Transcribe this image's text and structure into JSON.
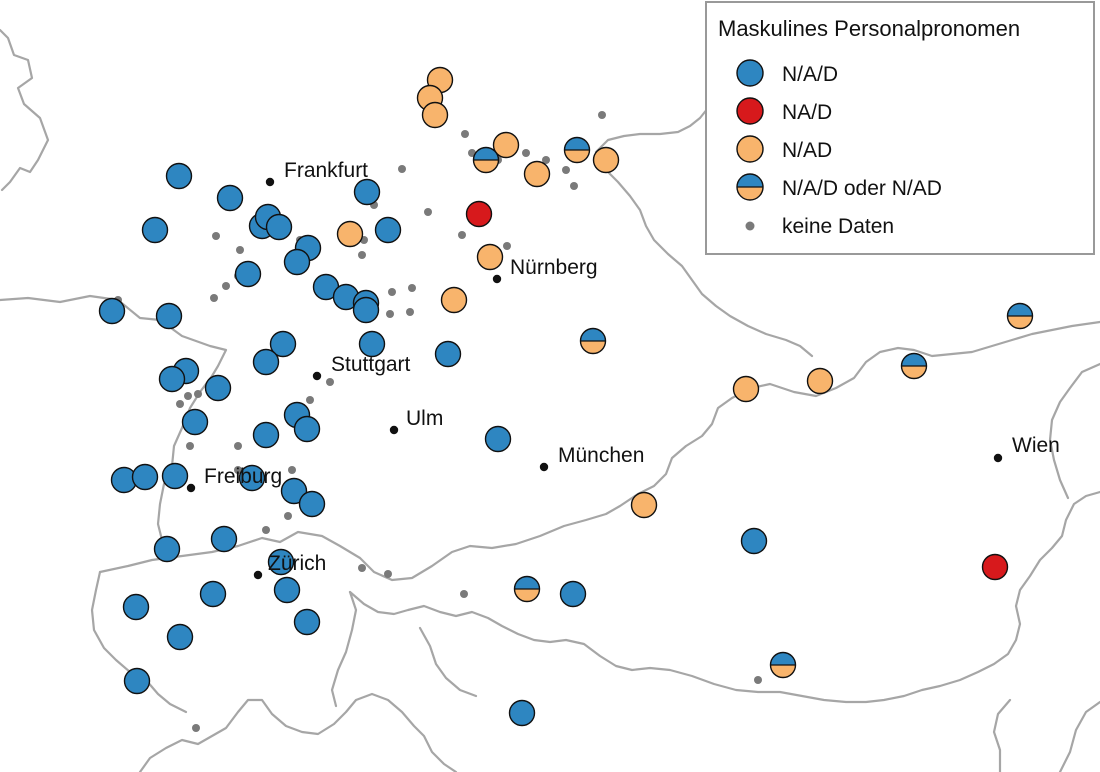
{
  "legend": {
    "title": "Maskulines Personalpronomen",
    "items": [
      {
        "key": "nad_sep",
        "label": "N/A/D",
        "symbol": "circle-blue"
      },
      {
        "key": "na_d",
        "label": "NA/D",
        "symbol": "circle-red"
      },
      {
        "key": "n_ad",
        "label": "N/AD",
        "symbol": "circle-orange"
      },
      {
        "key": "mixed",
        "label": "N/A/D oder N/AD",
        "symbol": "circle-half-orange-blue"
      },
      {
        "key": "none",
        "label": "keine Daten",
        "symbol": "small-grey-dot"
      }
    ]
  },
  "colors": {
    "nad_sep": "#2e86c1",
    "na_d": "#d7191c",
    "n_ad": "#f8b46c",
    "nodata": "#7a7a7a",
    "border": "#a6a6a6"
  },
  "cities": [
    {
      "name": "Frankfurt"
    },
    {
      "name": "Nürnberg"
    },
    {
      "name": "Stuttgart"
    },
    {
      "name": "Ulm"
    },
    {
      "name": "Freiburg"
    },
    {
      "name": "München"
    },
    {
      "name": "Zürich"
    },
    {
      "name": "Wien"
    }
  ]
}
